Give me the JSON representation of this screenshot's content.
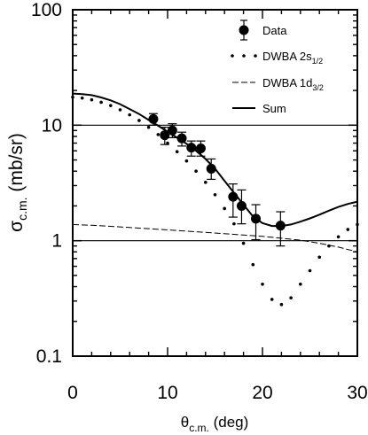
{
  "chart_data": {
    "type": "scatter",
    "xlabel": {
      "symbol": "θ",
      "sub": "c.m.",
      "unit": " (deg)"
    },
    "ylabel": {
      "symbol": "σ",
      "sub": "c.m.",
      "unit": " (mb/sr)"
    },
    "xlim": [
      0,
      30
    ],
    "ylim": [
      0.1,
      100
    ],
    "yscale": "log",
    "x_ticks": [
      0,
      10,
      20,
      30
    ],
    "x_tick_labels": [
      "0",
      "10",
      "20",
      "30"
    ],
    "y_ticks": [
      0.1,
      1,
      10,
      100
    ],
    "y_tick_labels": [
      "0.1",
      "1",
      "10",
      "100"
    ],
    "reference_lines_y": [
      1,
      10
    ],
    "legend": {
      "position": "top-right",
      "entries": [
        {
          "key": "data",
          "label": "Data",
          "style": "marker-errorbar"
        },
        {
          "key": "s12",
          "label": "DWBA 2s",
          "sub": "1/2",
          "style": "dotted"
        },
        {
          "key": "d32",
          "label": "DWBA 1d",
          "sub": "3/2",
          "style": "dashed"
        },
        {
          "key": "sum",
          "label": "Sum",
          "style": "solid"
        }
      ]
    },
    "series": [
      {
        "name": "Data",
        "kind": "points",
        "x": [
          8.5,
          9.7,
          10.5,
          11.5,
          12.5,
          13.5,
          14.6,
          16.9,
          17.8,
          19.3,
          21.9
        ],
        "y": [
          11.3,
          8.2,
          9.0,
          7.7,
          6.4,
          6.3,
          4.2,
          2.4,
          2.0,
          1.55,
          1.35
        ],
        "yerr_low": [
          10.0,
          6.8,
          7.8,
          6.6,
          5.4,
          5.4,
          3.4,
          1.6,
          1.4,
          1.02,
          0.9
        ],
        "yerr_high": [
          12.6,
          9.6,
          10.3,
          8.7,
          7.3,
          7.3,
          5.1,
          3.1,
          2.75,
          2.05,
          1.78
        ]
      },
      {
        "name": "DWBA 2s1/2",
        "kind": "dotted",
        "x": [
          0,
          1,
          2,
          3,
          4,
          5,
          6,
          7,
          8,
          9,
          10,
          11,
          12,
          13,
          14,
          15,
          16,
          17,
          18,
          19,
          20,
          21,
          22,
          23,
          24,
          25,
          26,
          27,
          28,
          29,
          30
        ],
        "y": [
          17.5,
          17.2,
          16.6,
          15.8,
          14.8,
          13.6,
          12.3,
          11.0,
          9.6,
          8.3,
          7.0,
          5.9,
          4.9,
          4.0,
          3.2,
          2.5,
          1.9,
          1.4,
          0.95,
          0.62,
          0.42,
          0.31,
          0.28,
          0.32,
          0.42,
          0.55,
          0.72,
          0.9,
          1.08,
          1.25,
          1.38
        ]
      },
      {
        "name": "DWBA 1d3/2",
        "kind": "dashed",
        "x": [
          0,
          2,
          4,
          6,
          8,
          10,
          12,
          14,
          16,
          18,
          20,
          22,
          24,
          26,
          28,
          30
        ],
        "y": [
          1.38,
          1.36,
          1.33,
          1.3,
          1.27,
          1.24,
          1.21,
          1.18,
          1.15,
          1.12,
          1.09,
          1.05,
          1.01,
          0.95,
          0.88,
          0.8
        ]
      },
      {
        "name": "Sum",
        "kind": "solid",
        "x": [
          0,
          1,
          2,
          3,
          4,
          5,
          6,
          7,
          8,
          9,
          10,
          11,
          12,
          13,
          14,
          15,
          16,
          17,
          18,
          19,
          20,
          21,
          22,
          23,
          24,
          25,
          26,
          27,
          28,
          29,
          30
        ],
        "y": [
          18.8,
          18.6,
          18.2,
          17.4,
          16.4,
          15.2,
          13.8,
          12.5,
          11.1,
          9.9,
          8.8,
          7.8,
          6.9,
          6.0,
          5.1,
          4.2,
          3.3,
          2.6,
          2.05,
          1.62,
          1.42,
          1.34,
          1.34,
          1.38,
          1.46,
          1.56,
          1.68,
          1.82,
          1.96,
          2.08,
          2.18
        ]
      }
    ]
  }
}
